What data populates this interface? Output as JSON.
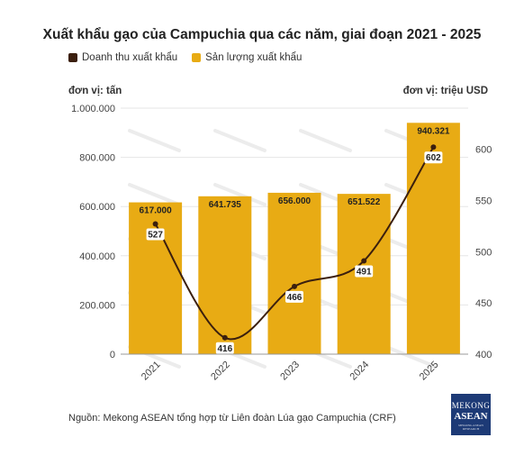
{
  "title": "Xuất khẩu gạo của Campuchia qua các năm, giai đoạn 2021 - 2025",
  "legend": {
    "revenue": "Doanh thu xuất khẩu",
    "volume": "Sản lượng xuất khẩu"
  },
  "units": {
    "left": "đơn vị: tấn",
    "right": "đơn vị: triệu USD"
  },
  "source": "Nguồn: Mekong ASEAN tổng hợp từ Liên đoàn Lúa gạo Campuchia (CRF)",
  "logo": {
    "line1": "MEKONG",
    "line2": "ASEAN",
    "line3": "MEKONG ASEAN RESEARCH"
  },
  "colors": {
    "bar": "#e8ab14",
    "line": "#3b1f0e",
    "grid": "#e6e6e6"
  },
  "chart_data": {
    "type": "bar+line",
    "categories": [
      "2021",
      "2022",
      "2023",
      "2024",
      "2025"
    ],
    "series": [
      {
        "name": "Sản lượng xuất khẩu",
        "type": "bar",
        "axis": "left",
        "values": [
          617000,
          641735,
          656000,
          651522,
          940321
        ],
        "labels": [
          "617.000",
          "641.735",
          "656.000",
          "651.522",
          "940.321"
        ]
      },
      {
        "name": "Doanh thu xuất khẩu",
        "type": "line",
        "axis": "right",
        "values": [
          527,
          416,
          466,
          491,
          602
        ],
        "labels": [
          "527",
          "416",
          "466",
          "491",
          "602"
        ]
      }
    ],
    "y_left": {
      "min": 0,
      "max": 1000000,
      "ticks": [
        0,
        200000,
        400000,
        600000,
        800000,
        1000000
      ],
      "tick_labels": [
        "0",
        "200.000",
        "400.000",
        "600.000",
        "800.000",
        "1.000.000"
      ]
    },
    "y_right": {
      "min": 400,
      "max": 640,
      "ticks": [
        400,
        450,
        500,
        550,
        600
      ],
      "tick_labels": [
        "400",
        "450",
        "500",
        "550",
        "600"
      ]
    },
    "grid": true,
    "legend_position": "top-left"
  }
}
